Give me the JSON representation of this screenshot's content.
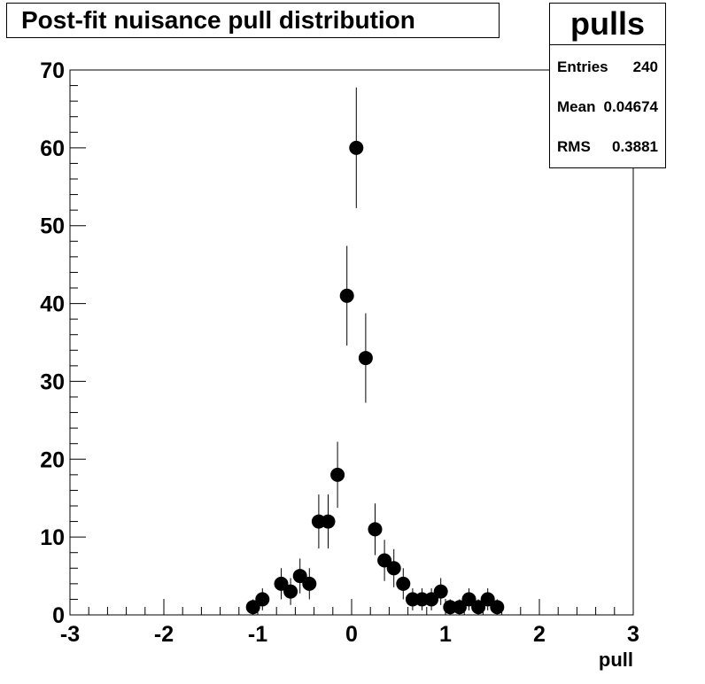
{
  "title": "Post-fit nuisance pull distribution",
  "stats": {
    "name": "pulls",
    "rows": [
      {
        "label": "Entries",
        "value": "240"
      },
      {
        "label": "Mean",
        "value": "0.04674"
      },
      {
        "label": "RMS",
        "value": "0.3881"
      }
    ]
  },
  "chart_data": {
    "type": "scatter",
    "title": "Post-fit nuisance pull distribution",
    "xlabel": "pull",
    "ylabel": "",
    "xlim": [
      -3,
      3
    ],
    "ylim": [
      0,
      70
    ],
    "x_ticks": [
      "-3",
      "-2",
      "-1",
      "0",
      "1",
      "2",
      "3"
    ],
    "y_ticks": [
      "0",
      "10",
      "20",
      "30",
      "40",
      "50",
      "60",
      "70"
    ],
    "errors": "sqrt(N)",
    "points": [
      {
        "x": -1.05,
        "y": 1
      },
      {
        "x": -0.95,
        "y": 2
      },
      {
        "x": -0.75,
        "y": 4
      },
      {
        "x": -0.65,
        "y": 3
      },
      {
        "x": -0.55,
        "y": 5
      },
      {
        "x": -0.45,
        "y": 4
      },
      {
        "x": -0.35,
        "y": 12
      },
      {
        "x": -0.25,
        "y": 12
      },
      {
        "x": -0.15,
        "y": 18
      },
      {
        "x": -0.05,
        "y": 41
      },
      {
        "x": 0.05,
        "y": 60
      },
      {
        "x": 0.15,
        "y": 33
      },
      {
        "x": 0.25,
        "y": 11
      },
      {
        "x": 0.35,
        "y": 7
      },
      {
        "x": 0.45,
        "y": 6
      },
      {
        "x": 0.55,
        "y": 4
      },
      {
        "x": 0.65,
        "y": 2
      },
      {
        "x": 0.75,
        "y": 2
      },
      {
        "x": 0.85,
        "y": 2
      },
      {
        "x": 0.95,
        "y": 3
      },
      {
        "x": 1.05,
        "y": 1
      },
      {
        "x": 1.15,
        "y": 1
      },
      {
        "x": 1.25,
        "y": 2
      },
      {
        "x": 1.35,
        "y": 1
      },
      {
        "x": 1.45,
        "y": 2
      },
      {
        "x": 1.55,
        "y": 1
      }
    ]
  }
}
